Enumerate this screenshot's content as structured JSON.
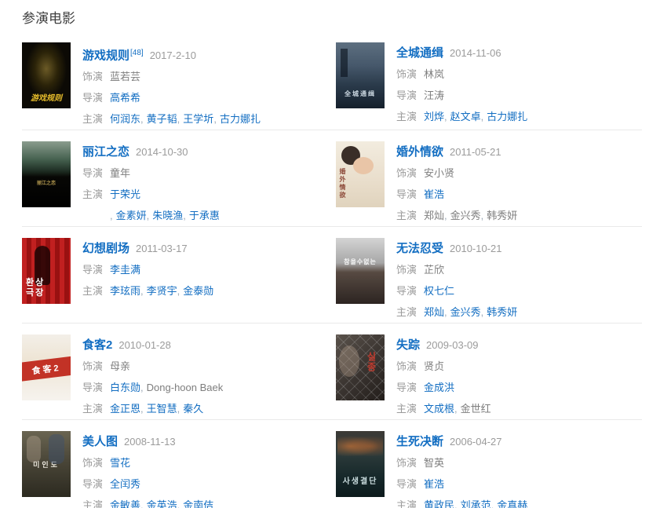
{
  "page": {
    "title": "参演电影",
    "separator": ","
  },
  "movies": [
    {
      "title": "游戏规则",
      "sup": "[48]",
      "date": "2017-2-10",
      "poster": {
        "style": "p1",
        "caption": "游戏规则"
      },
      "credits": [
        {
          "label": "饰演",
          "names": [
            {
              "text": "蓝若芸",
              "link": false
            }
          ]
        },
        {
          "label": "导演",
          "names": [
            {
              "text": "高希希",
              "link": true
            }
          ]
        },
        {
          "label": "主演",
          "names": [
            {
              "text": "何润东",
              "link": true
            },
            {
              "text": "黄子韬",
              "link": true
            },
            {
              "text": "王学圻",
              "link": true
            },
            {
              "text": "古力娜扎",
              "link": true
            }
          ]
        }
      ]
    },
    {
      "title": "全城通缉",
      "date": "2014-11-06",
      "poster": {
        "style": "p2",
        "caption": "全城通缉"
      },
      "credits": [
        {
          "label": "饰演",
          "names": [
            {
              "text": "林岚",
              "link": false
            }
          ]
        },
        {
          "label": "导演",
          "names": [
            {
              "text": "汪涛",
              "link": false
            }
          ]
        },
        {
          "label": "主演",
          "names": [
            {
              "text": "刘烨",
              "link": true
            },
            {
              "text": "赵文卓",
              "link": true
            },
            {
              "text": "古力娜扎",
              "link": true
            }
          ]
        }
      ]
    },
    {
      "title": "丽江之恋",
      "date": "2014-10-30",
      "poster": {
        "style": "p3",
        "caption": "丽江之恋"
      },
      "credits": [
        {
          "label": "导演",
          "names": [
            {
              "text": "童年",
              "link": false
            }
          ]
        },
        {
          "label": "主演",
          "names": [
            {
              "text": "于荣光",
              "link": true,
              "break_after": true
            },
            {
              "text": "金素妍",
              "link": true
            },
            {
              "text": "朱晓渔",
              "link": true
            },
            {
              "text": "于承惠",
              "link": true
            }
          ]
        }
      ]
    },
    {
      "title": "婚外情欲",
      "date": "2011-05-21",
      "poster": {
        "style": "p4",
        "caption": "婚外情欲"
      },
      "credits": [
        {
          "label": "饰演",
          "names": [
            {
              "text": "安小贤",
              "link": false
            }
          ]
        },
        {
          "label": "导演",
          "names": [
            {
              "text": "崔浩",
              "link": true
            }
          ]
        },
        {
          "label": "主演",
          "names": [
            {
              "text": "郑灿",
              "link": false
            },
            {
              "text": "金兴秀",
              "link": false
            },
            {
              "text": "韩秀妍",
              "link": false
            }
          ]
        }
      ]
    },
    {
      "title": "幻想剧场",
      "date": "2011-03-17",
      "poster": {
        "style": "p5",
        "caption": "환상극장"
      },
      "credits": [
        {
          "label": "导演",
          "names": [
            {
              "text": "李圭满",
              "link": true
            }
          ]
        },
        {
          "label": "主演",
          "names": [
            {
              "text": "李玹雨",
              "link": true
            },
            {
              "text": "李贤宇",
              "link": true
            },
            {
              "text": "金泰勋",
              "link": true
            }
          ]
        }
      ]
    },
    {
      "title": "无法忍受",
      "date": "2010-10-21",
      "poster": {
        "style": "p6",
        "caption": "참을수없는"
      },
      "credits": [
        {
          "label": "饰演",
          "names": [
            {
              "text": "芷欣",
              "link": false
            }
          ]
        },
        {
          "label": "导演",
          "names": [
            {
              "text": "权七仁",
              "link": true
            }
          ]
        },
        {
          "label": "主演",
          "names": [
            {
              "text": "郑灿",
              "link": true
            },
            {
              "text": "金兴秀",
              "link": true
            },
            {
              "text": "韩秀妍",
              "link": true
            }
          ]
        }
      ]
    },
    {
      "title": "食客2",
      "date": "2010-01-28",
      "poster": {
        "style": "p7",
        "caption": "食客2"
      },
      "credits": [
        {
          "label": "饰演",
          "names": [
            {
              "text": "母亲",
              "link": false
            }
          ]
        },
        {
          "label": "导演",
          "names": [
            {
              "text": "白东勋",
              "link": true
            },
            {
              "text": "Dong-hoon Baek",
              "link": false
            }
          ]
        },
        {
          "label": "主演",
          "names": [
            {
              "text": "金正恩",
              "link": true
            },
            {
              "text": "王智慧",
              "link": true
            },
            {
              "text": "秦久",
              "link": true
            }
          ]
        }
      ]
    },
    {
      "title": "失踪",
      "date": "2009-03-09",
      "poster": {
        "style": "p8",
        "caption": "실종"
      },
      "credits": [
        {
          "label": "饰演",
          "names": [
            {
              "text": "贤贞",
              "link": false
            }
          ]
        },
        {
          "label": "导演",
          "names": [
            {
              "text": "金成洪",
              "link": true
            }
          ]
        },
        {
          "label": "主演",
          "names": [
            {
              "text": "文成根",
              "link": true
            },
            {
              "text": "金世红",
              "link": false
            }
          ]
        }
      ]
    },
    {
      "title": "美人图",
      "date": "2008-11-13",
      "poster": {
        "style": "p9",
        "caption": "미인도"
      },
      "credits": [
        {
          "label": "饰演",
          "names": [
            {
              "text": "雪花",
              "link": true
            }
          ]
        },
        {
          "label": "导演",
          "names": [
            {
              "text": "全闰秀",
              "link": true
            }
          ]
        },
        {
          "label": "主演",
          "names": [
            {
              "text": "金敏善",
              "link": true
            },
            {
              "text": "金英浩",
              "link": true
            },
            {
              "text": "金南佶",
              "link": true
            }
          ]
        }
      ]
    },
    {
      "title": "生死决断",
      "date": "2006-04-27",
      "poster": {
        "style": "p10",
        "caption": "사생결단"
      },
      "credits": [
        {
          "label": "饰演",
          "names": [
            {
              "text": "智英",
              "link": false
            }
          ]
        },
        {
          "label": "导演",
          "names": [
            {
              "text": "崔浩",
              "link": true
            }
          ]
        },
        {
          "label": "主演",
          "names": [
            {
              "text": "黄政民",
              "link": true
            },
            {
              "text": "刘承范",
              "link": true
            },
            {
              "text": "金真赫",
              "link": true
            }
          ]
        }
      ]
    }
  ]
}
